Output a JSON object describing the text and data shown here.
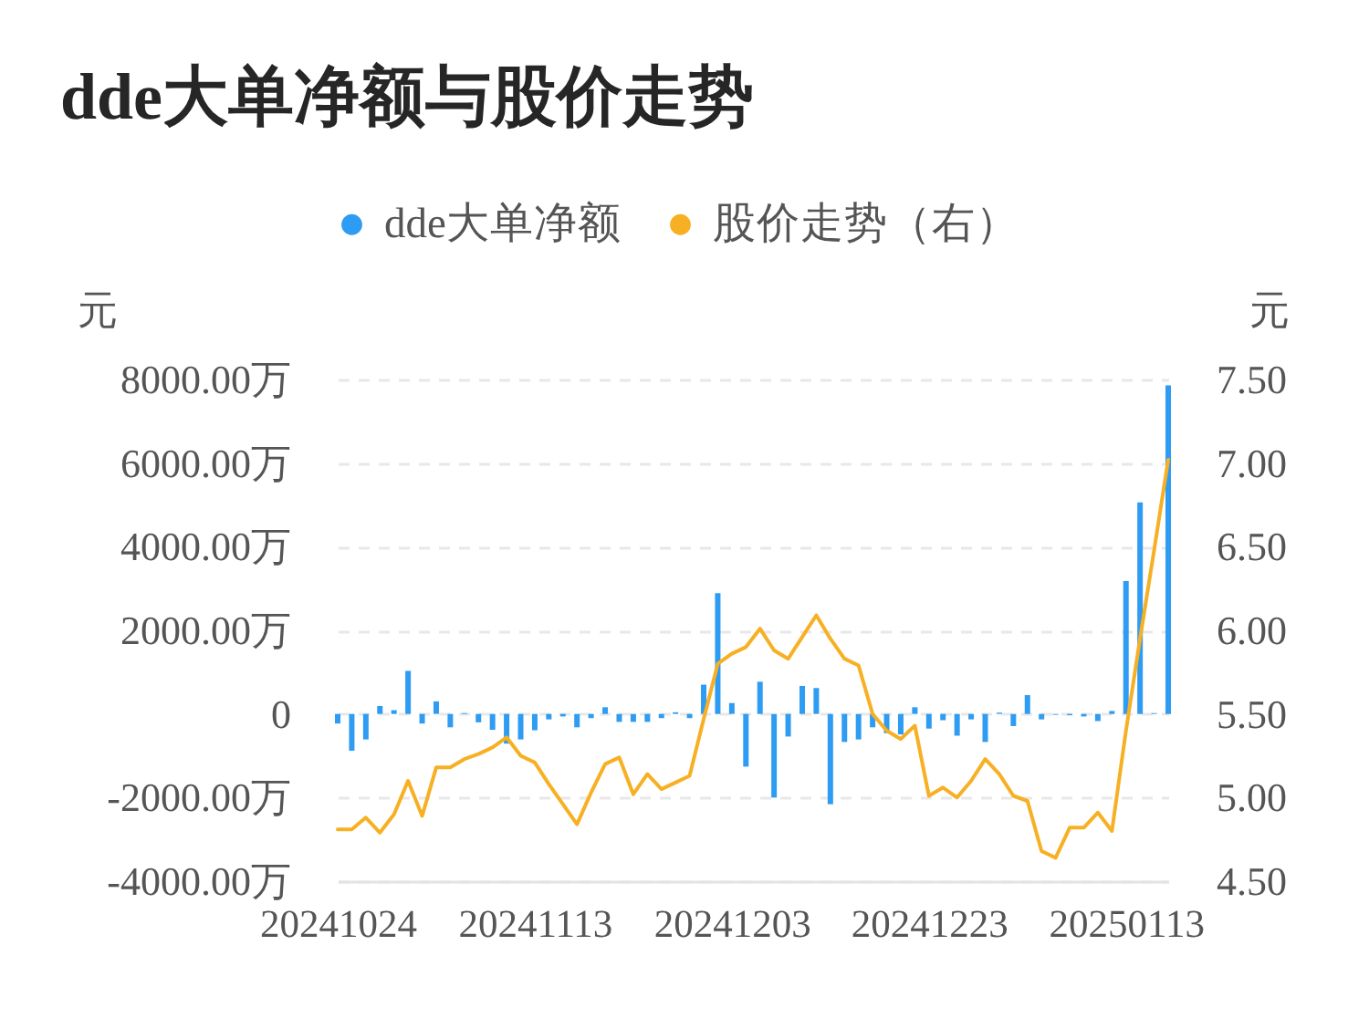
{
  "chart_data": {
    "type": "bar",
    "title": "dde大单净额与股价走势",
    "ylabel": "元",
    "y2label": "元",
    "categories": [
      "20241024",
      null,
      null,
      null,
      null,
      null,
      null,
      null,
      null,
      null,
      null,
      null,
      null,
      null,
      "20241113",
      null,
      null,
      null,
      null,
      null,
      null,
      null,
      null,
      null,
      null,
      null,
      null,
      null,
      "20241203",
      null,
      null,
      null,
      null,
      null,
      null,
      null,
      null,
      null,
      null,
      null,
      null,
      null,
      "20241223",
      null,
      null,
      null,
      null,
      null,
      null,
      null,
      null,
      null,
      null,
      null,
      null,
      null,
      "20250113",
      null,
      null,
      null
    ],
    "series": [
      {
        "name": "dde大单净额",
        "color": "#2e9cf2",
        "values": [
          -230,
          -880,
          -610,
          190,
          90,
          1030,
          -230,
          300,
          -320,
          20,
          -200,
          -380,
          -710,
          -610,
          -390,
          -130,
          -60,
          -320,
          -100,
          160,
          -190,
          -190,
          -190,
          -100,
          40,
          -100,
          700,
          2890,
          260,
          -1260,
          770,
          -2000,
          -540,
          670,
          620,
          -2160,
          -670,
          -610,
          -320,
          -460,
          -490,
          160,
          -350,
          -150,
          -520,
          -130,
          -670,
          30,
          -290,
          450,
          -130,
          -20,
          -30,
          -60,
          -170,
          70,
          3180,
          5060,
          20,
          7860
        ]
      },
      {
        "name": "股价走势（右）",
        "type": "line",
        "axis": "y2",
        "color": "#f7b024",
        "values": [
          4.81,
          4.81,
          4.88,
          4.79,
          4.9,
          5.1,
          4.89,
          5.18,
          5.18,
          5.23,
          5.26,
          5.3,
          5.36,
          5.25,
          5.21,
          5.08,
          4.96,
          4.84,
          5.03,
          5.2,
          5.24,
          5.02,
          5.14,
          5.05,
          5.09,
          5.13,
          5.47,
          5.8,
          5.86,
          5.9,
          6.01,
          5.88,
          5.83,
          5.96,
          6.09,
          5.95,
          5.83,
          5.79,
          5.5,
          5.4,
          5.35,
          5.43,
          5.01,
          5.06,
          5.0,
          5.1,
          5.23,
          5.14,
          5.01,
          4.98,
          4.68,
          4.64,
          4.82,
          4.82,
          4.91,
          4.8,
          5.4,
          5.95,
          6.48,
          7.02
        ]
      }
    ],
    "ylim": [
      -4000,
      8000
    ],
    "yticks": [
      {
        "value": -4000,
        "label": "-4000.00万"
      },
      {
        "value": -2000,
        "label": "-2000.00万"
      },
      0,
      {
        "value": 2000,
        "label": "2000.00万"
      },
      {
        "value": 4000,
        "label": "4000.00万"
      },
      {
        "value": 6000,
        "label": "6000.00万"
      },
      {
        "value": 8000,
        "label": "8000.00万"
      }
    ],
    "y2lim": [
      4.5,
      7.5
    ],
    "y2ticks": [
      {
        "value": 4.5,
        "label": "4.50"
      },
      {
        "value": 5,
        "label": "5.00"
      },
      {
        "value": 5.5,
        "label": "5.50"
      },
      {
        "value": 6,
        "label": "6.00"
      },
      {
        "value": 6.5,
        "label": "6.50"
      },
      {
        "value": 7,
        "label": "7.00"
      },
      {
        "value": 7.5,
        "label": "7.50"
      }
    ],
    "grid": "y",
    "legend": "top"
  }
}
